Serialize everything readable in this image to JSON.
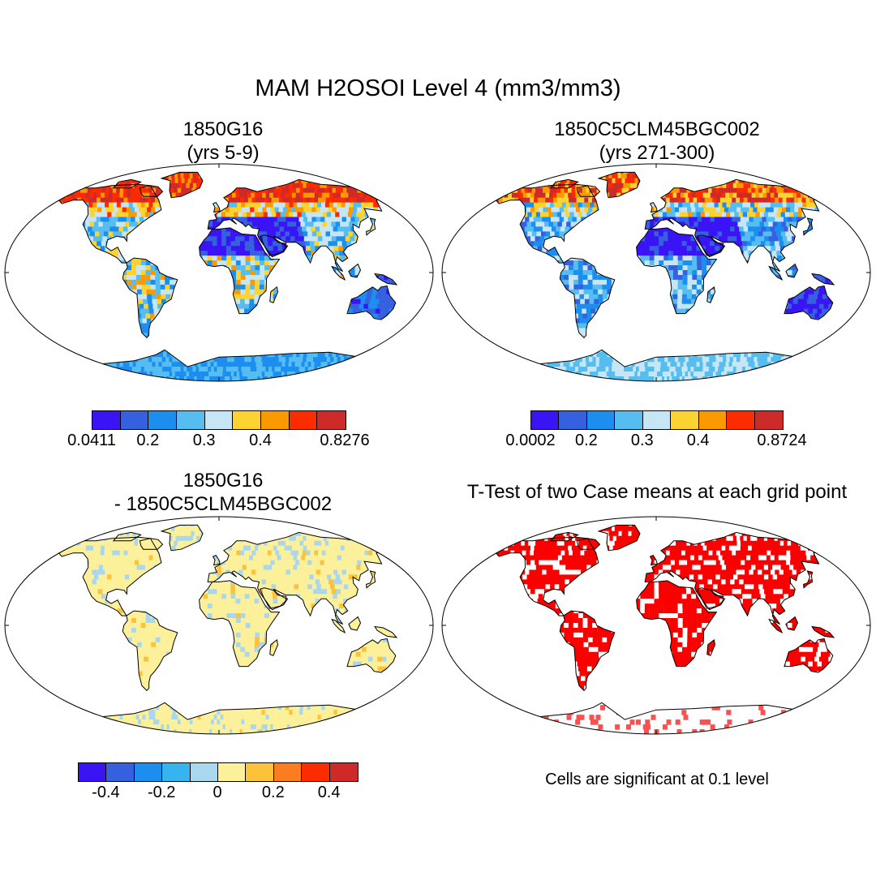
{
  "title": "MAM H2OSOI Level 4 (mm3/mm3)",
  "panels": [
    {
      "line1": "1850G16",
      "line2": "(yrs 5-9)",
      "colorbar": {
        "colors": [
          "#3a14f5",
          "#3561e0",
          "#1c8ef0",
          "#55bdf0",
          "#c6e6f6",
          "#fcd330",
          "#fb9a00",
          "#fc2b00",
          "#cf2a2a"
        ],
        "labels": [
          "0.0411",
          "0.2",
          "0.3",
          "0.4",
          "0.8276"
        ]
      }
    },
    {
      "line1": "1850C5CLM45BGC002",
      "line2": "(yrs 271-300)",
      "colorbar": {
        "colors": [
          "#3a14f5",
          "#3561e0",
          "#1c8ef0",
          "#55bdf0",
          "#c6e6f6",
          "#fcd330",
          "#fb9a00",
          "#fc2b00",
          "#cf2a2a"
        ],
        "labels": [
          "0.0002",
          "0.2",
          "0.3",
          "0.4",
          "0.8724"
        ]
      }
    },
    {
      "line1": "1850G16",
      "line2": "- 1850C5CLM45BGC002",
      "colorbar": {
        "colors": [
          "#3a14f5",
          "#3561e0",
          "#1c8ef0",
          "#36b4f0",
          "#a9d7ee",
          "#fdf09a",
          "#fcc23a",
          "#fb7d1f",
          "#fc2b00",
          "#cf2a2a"
        ],
        "labels": [
          "-0.4",
          "-0.2",
          "0",
          "0.2",
          "0.4"
        ]
      }
    },
    {
      "line1": "T-Test of two Case means at each grid point",
      "line2": "",
      "note": "Cells are significant at 0.1 level"
    }
  ]
}
